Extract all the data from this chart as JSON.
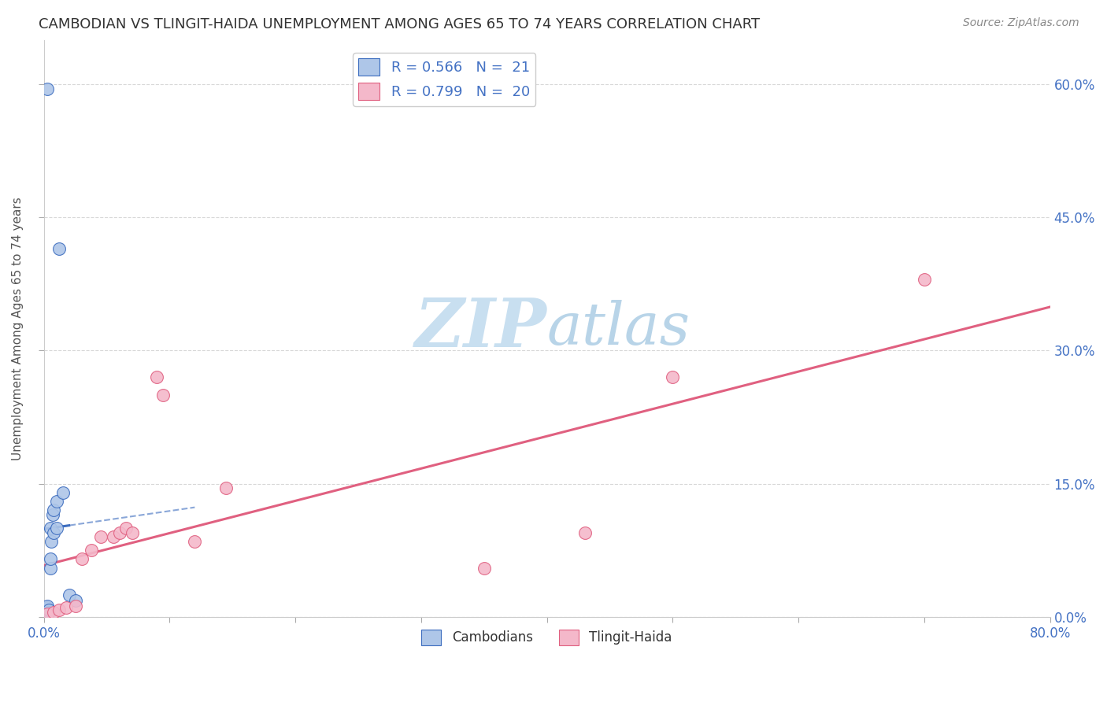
{
  "title": "CAMBODIAN VS TLINGIT-HAIDA UNEMPLOYMENT AMONG AGES 65 TO 74 YEARS CORRELATION CHART",
  "source": "Source: ZipAtlas.com",
  "ylabel": "Unemployment Among Ages 65 to 74 years",
  "xlim": [
    0,
    0.8
  ],
  "ylim": [
    0,
    0.65
  ],
  "xticks": [
    0.0,
    0.1,
    0.2,
    0.3,
    0.4,
    0.5,
    0.6,
    0.7,
    0.8
  ],
  "yticks": [
    0.0,
    0.15,
    0.3,
    0.45,
    0.6
  ],
  "right_ytick_labels": [
    "0.0%",
    "15.0%",
    "30.0%",
    "45.0%",
    "60.0%"
  ],
  "cambodian_x": [
    0.003,
    0.003,
    0.003,
    0.003,
    0.003,
    0.004,
    0.004,
    0.005,
    0.005,
    0.005,
    0.006,
    0.007,
    0.008,
    0.008,
    0.01,
    0.01,
    0.012,
    0.015,
    0.02,
    0.025,
    0.003
  ],
  "cambodian_y": [
    0.003,
    0.005,
    0.008,
    0.01,
    0.012,
    0.005,
    0.008,
    0.055,
    0.065,
    0.1,
    0.085,
    0.115,
    0.095,
    0.12,
    0.1,
    0.13,
    0.415,
    0.14,
    0.025,
    0.018,
    0.595
  ],
  "tlingit_x": [
    0.003,
    0.008,
    0.012,
    0.018,
    0.025,
    0.03,
    0.038,
    0.045,
    0.055,
    0.06,
    0.065,
    0.07,
    0.09,
    0.095,
    0.12,
    0.145,
    0.35,
    0.43,
    0.5,
    0.7
  ],
  "tlingit_y": [
    0.003,
    0.005,
    0.008,
    0.01,
    0.012,
    0.065,
    0.075,
    0.09,
    0.09,
    0.095,
    0.1,
    0.095,
    0.27,
    0.25,
    0.085,
    0.145,
    0.055,
    0.095,
    0.27,
    0.38
  ],
  "cambodian_color": "#aec6e8",
  "tlingit_color": "#f4b8ca",
  "cambodian_line_color": "#3d6dbf",
  "tlingit_line_color": "#e06080",
  "cambodian_R": 0.566,
  "cambodian_N": 21,
  "tlingit_R": 0.799,
  "tlingit_N": 20,
  "legend_label_cambodian": "Cambodians",
  "legend_label_tlingit": "Tlingit-Haida",
  "watermark_zip": "ZIP",
  "watermark_atlas": "atlas",
  "watermark_color": "#c8dff0",
  "background_color": "#ffffff",
  "grid_color": "#d8d8d8"
}
